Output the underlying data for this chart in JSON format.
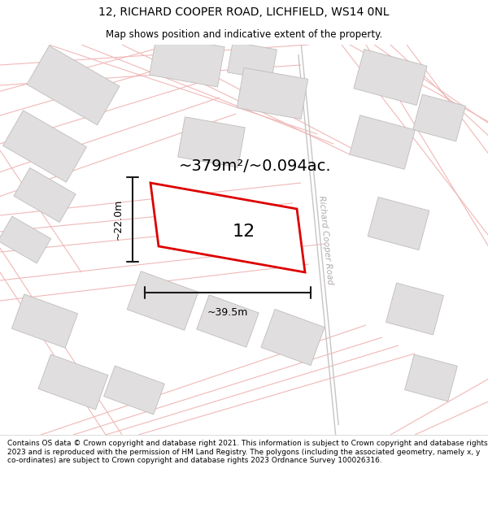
{
  "title": "12, RICHARD COOPER ROAD, LICHFIELD, WS14 0NL",
  "subtitle": "Map shows position and indicative extent of the property.",
  "footer": "Contains OS data © Crown copyright and database right 2021. This information is subject to Crown copyright and database rights 2023 and is reproduced with the permission of HM Land Registry. The polygons (including the associated geometry, namely x, y co-ordinates) are subject to Crown copyright and database rights 2023 Ordnance Survey 100026316.",
  "area_label": "~379m²/~0.094ac.",
  "width_label": "~39.5m",
  "height_label": "~22.0m",
  "plot_number": "12",
  "map_bg": "#ffffff",
  "plot_fill": "white",
  "plot_edge": "#dd0000",
  "road_label": "Richard Cooper Road",
  "road_line_color": "#c8c4c4",
  "street_color": "#f0b8b8",
  "building_fill": "#e0dede",
  "building_edge": "#c0bcbc",
  "dim_line_color": "#1a1a1a",
  "road_label_color": "#b0aaaa",
  "title_fontsize": 10,
  "subtitle_fontsize": 8.5,
  "area_fontsize": 14,
  "footer_fontsize": 6.5
}
